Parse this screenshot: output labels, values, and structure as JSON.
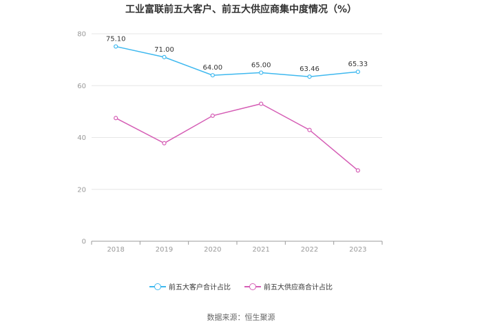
{
  "chart_data": {
    "type": "line",
    "title": "工业富联前五大客户、前五大供应商集中度情况（%）",
    "categories": [
      "2018",
      "2019",
      "2020",
      "2021",
      "2022",
      "2023"
    ],
    "ylim": [
      0,
      80
    ],
    "yticks": [
      "0",
      "20",
      "40",
      "60",
      "80"
    ],
    "grid": true,
    "legend_position": "bottom",
    "series": [
      {
        "name": "前五大客户合计占比",
        "color": "#3db8ef",
        "values": [
          75.1,
          71.0,
          64.0,
          65.0,
          63.46,
          65.33
        ],
        "labels": [
          "75.10",
          "71.00",
          "64.00",
          "65.00",
          "63.46",
          "65.33"
        ]
      },
      {
        "name": "前五大供应商合计占比",
        "color": "#d55db5",
        "values": [
          47.5,
          37.8,
          48.4,
          53.0,
          42.9,
          27.3
        ],
        "labels": []
      }
    ]
  },
  "source": "数据来源：恒生聚源"
}
